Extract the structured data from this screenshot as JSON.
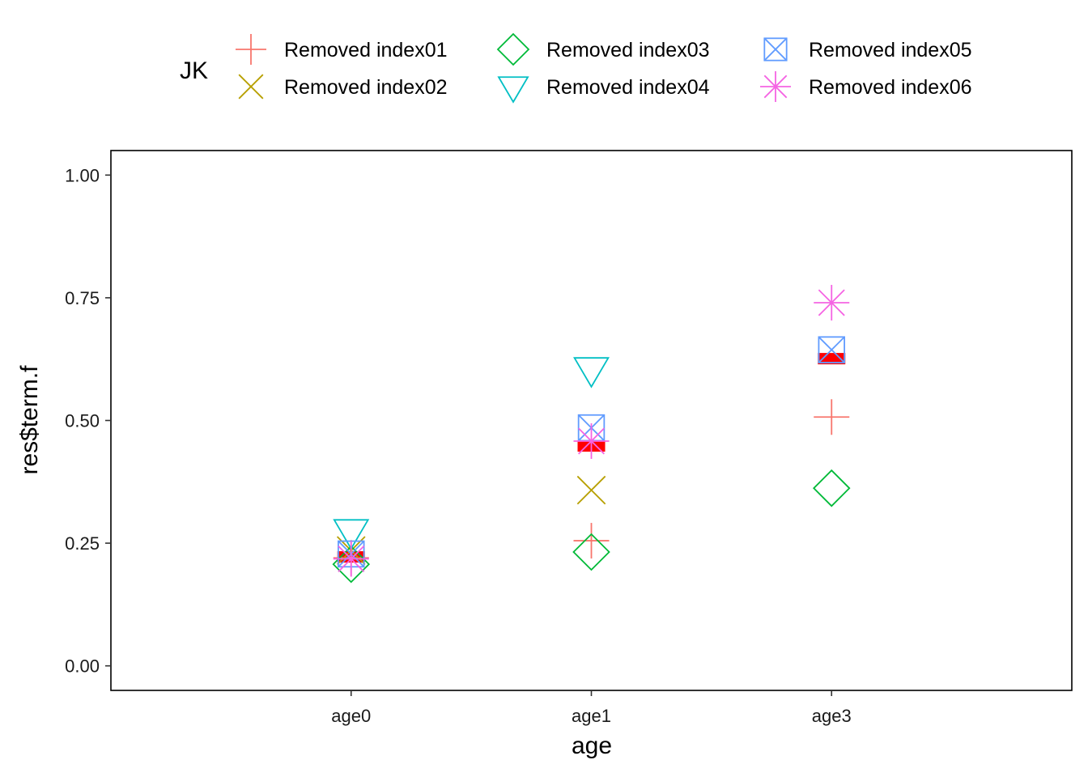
{
  "chart_data": {
    "type": "scatter",
    "xlabel": "age",
    "ylabel": "res$term.f",
    "categories": [
      "age0",
      "age1",
      "age3"
    ],
    "ylim": [
      -0.05,
      1.05
    ],
    "yticks": [
      0.0,
      0.25,
      0.5,
      0.75,
      1.0
    ],
    "ytick_labels": [
      "0.00",
      "0.25",
      "0.50",
      "0.75",
      "1.00"
    ],
    "grid": false,
    "legend": {
      "title": "JK",
      "position": "top"
    },
    "baseline": {
      "color": "#FF0000",
      "values": [
        0.222,
        0.448,
        0.626
      ]
    },
    "series": [
      {
        "name": "Removed index01",
        "shape": "plus",
        "color": "#F8766D",
        "values": [
          0.22,
          0.255,
          0.507
        ]
      },
      {
        "name": "Removed index02",
        "shape": "cross",
        "color": "#B79F00",
        "values": [
          0.235,
          0.358,
          null
        ]
      },
      {
        "name": "Removed index03",
        "shape": "diamond",
        "color": "#00BA38",
        "values": [
          0.207,
          0.232,
          0.362
        ]
      },
      {
        "name": "Removed index04",
        "shape": "triangle-down",
        "color": "#00BFC4",
        "values": [
          0.275,
          0.605,
          null
        ]
      },
      {
        "name": "Removed index05",
        "shape": "square-cross",
        "color": "#619CFF",
        "values": [
          0.228,
          0.485,
          0.644
        ]
      },
      {
        "name": "Removed index06",
        "shape": "asterisk",
        "color": "#F564E3",
        "values": [
          0.218,
          0.458,
          0.74
        ]
      }
    ]
  }
}
